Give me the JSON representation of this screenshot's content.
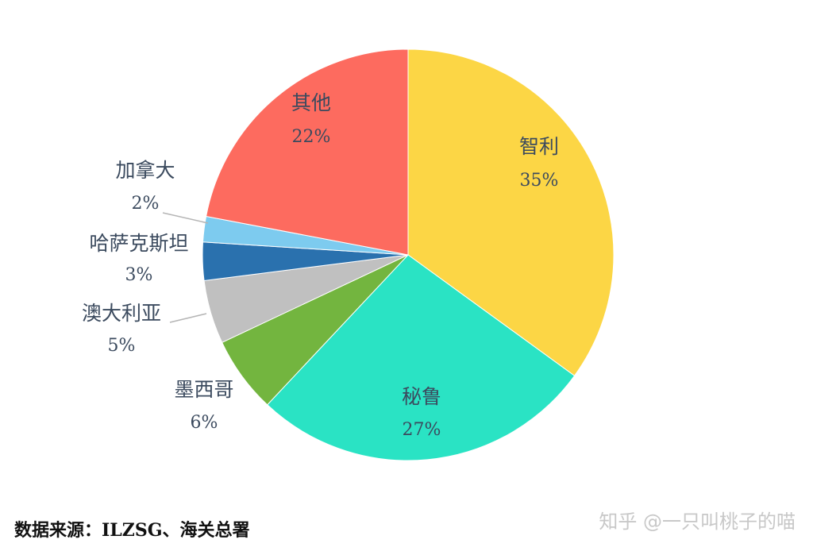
{
  "chart_data": {
    "type": "pie",
    "slices": [
      {
        "label": "智利",
        "value": 35,
        "display": "35%",
        "color": "#FCD645"
      },
      {
        "label": "秘鲁",
        "value": 27,
        "display": "27%",
        "color": "#2AE3C4"
      },
      {
        "label": "墨西哥",
        "value": 6,
        "display": "6%",
        "color": "#73B53F"
      },
      {
        "label": "澳大利亚",
        "value": 5,
        "display": "5%",
        "color": "#C0C0C0"
      },
      {
        "label": "哈萨克斯坦",
        "value": 3,
        "display": "3%",
        "color": "#2A71AE"
      },
      {
        "label": "加拿大",
        "value": 2,
        "display": "2%",
        "color": "#7DCBEF"
      },
      {
        "label": "其他",
        "value": 22,
        "display": "22%",
        "color": "#FD6B5F"
      }
    ]
  },
  "footer": {
    "source": "数据来源：ILZSG、海关总署",
    "watermark": "知乎 @一只叫桃子的喵"
  }
}
